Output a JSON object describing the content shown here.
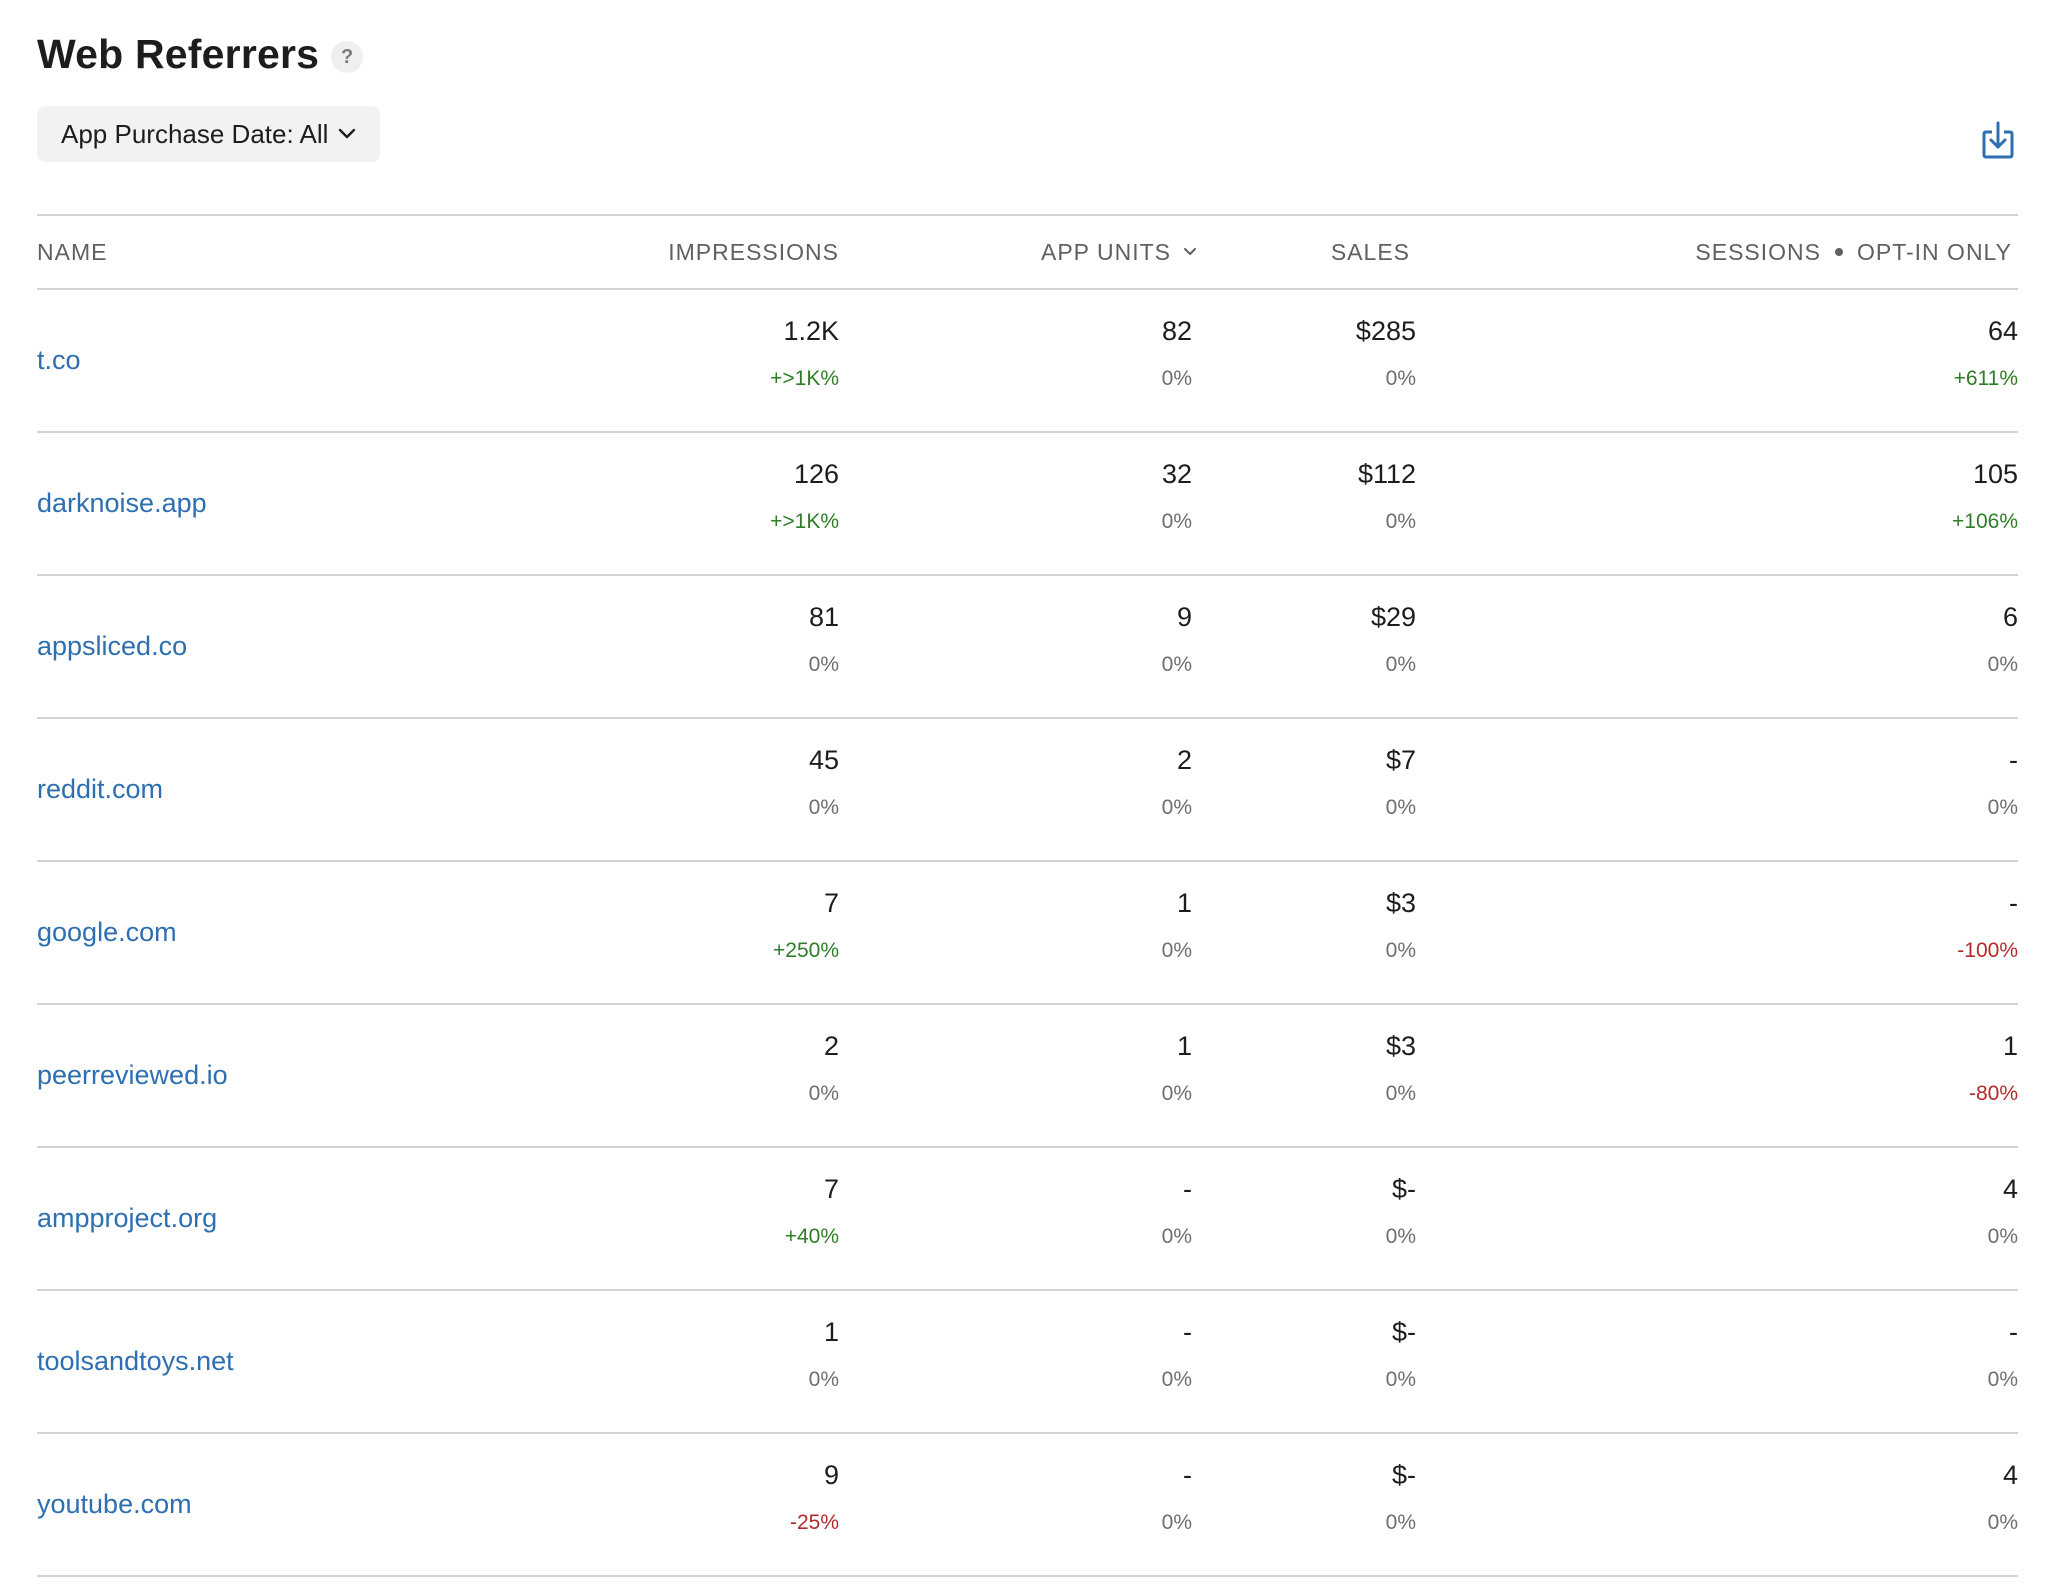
{
  "header": {
    "title": "Web Referrers",
    "help_label": "?"
  },
  "filter": {
    "label": "App Purchase Date: All"
  },
  "table": {
    "columns": {
      "name": "NAME",
      "impressions": "IMPRESSIONS",
      "app_units": "APP UNITS",
      "sales": "SALES",
      "sessions": "SESSIONS",
      "sessions_suffix": "OPT-IN ONLY"
    },
    "rows": [
      {
        "name": "t.co",
        "impressions": "1.2K",
        "impressions_delta": "+>1K%",
        "app_units": "82",
        "app_units_delta": "0%",
        "sales": "$285",
        "sales_delta": "0%",
        "sessions": "64",
        "sessions_delta": "+611%"
      },
      {
        "name": "darknoise.app",
        "impressions": "126",
        "impressions_delta": "+>1K%",
        "app_units": "32",
        "app_units_delta": "0%",
        "sales": "$112",
        "sales_delta": "0%",
        "sessions": "105",
        "sessions_delta": "+106%"
      },
      {
        "name": "appsliced.co",
        "impressions": "81",
        "impressions_delta": "0%",
        "app_units": "9",
        "app_units_delta": "0%",
        "sales": "$29",
        "sales_delta": "0%",
        "sessions": "6",
        "sessions_delta": "0%"
      },
      {
        "name": "reddit.com",
        "impressions": "45",
        "impressions_delta": "0%",
        "app_units": "2",
        "app_units_delta": "0%",
        "sales": "$7",
        "sales_delta": "0%",
        "sessions": "-",
        "sessions_delta": "0%"
      },
      {
        "name": "google.com",
        "impressions": "7",
        "impressions_delta": "+250%",
        "app_units": "1",
        "app_units_delta": "0%",
        "sales": "$3",
        "sales_delta": "0%",
        "sessions": "-",
        "sessions_delta": "-100%"
      },
      {
        "name": "peerreviewed.io",
        "impressions": "2",
        "impressions_delta": "0%",
        "app_units": "1",
        "app_units_delta": "0%",
        "sales": "$3",
        "sales_delta": "0%",
        "sessions": "1",
        "sessions_delta": "-80%"
      },
      {
        "name": "ampproject.org",
        "impressions": "7",
        "impressions_delta": "+40%",
        "app_units": "-",
        "app_units_delta": "0%",
        "sales": "$-",
        "sales_delta": "0%",
        "sessions": "4",
        "sessions_delta": "0%"
      },
      {
        "name": "toolsandtoys.net",
        "impressions": "1",
        "impressions_delta": "0%",
        "app_units": "-",
        "app_units_delta": "0%",
        "sales": "$-",
        "sales_delta": "0%",
        "sessions": "-",
        "sessions_delta": "0%"
      },
      {
        "name": "youtube.com",
        "impressions": "9",
        "impressions_delta": "-25%",
        "app_units": "-",
        "app_units_delta": "0%",
        "sales": "$-",
        "sales_delta": "0%",
        "sessions": "4",
        "sessions_delta": "0%"
      }
    ]
  },
  "colors": {
    "link": "#2d6fb1",
    "positive": "#2f7d28",
    "negative": "#b42a2a",
    "accent_icon": "#2d6fb1"
  },
  "icons": {
    "help": "question-icon",
    "filter_chevron": "chevron-down-icon",
    "sort": "chevron-down-icon",
    "export": "download-icon"
  }
}
